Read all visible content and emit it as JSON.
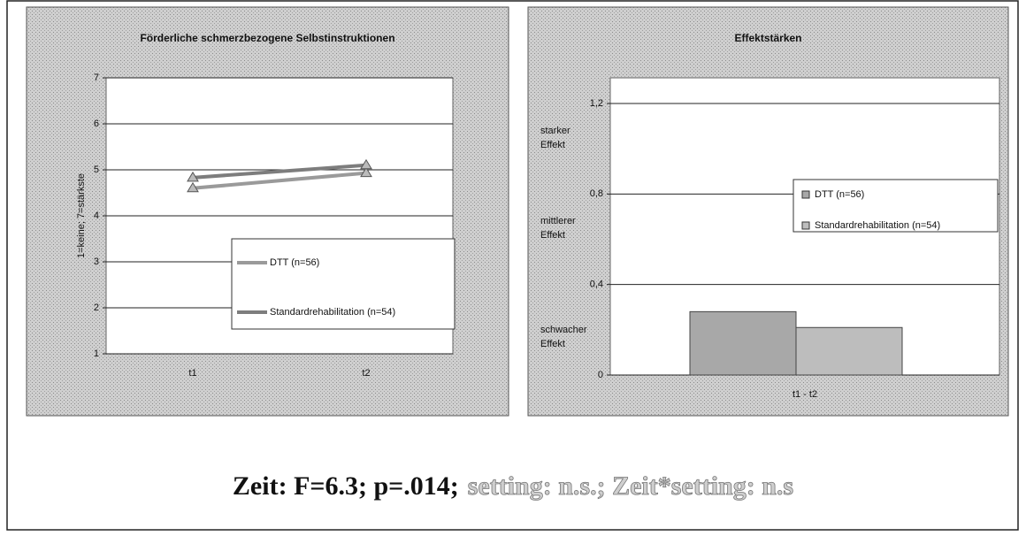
{
  "chart_data": [
    {
      "type": "line",
      "title": "Förderliche schmerzbezogene Selbstinstruktionen",
      "y_label": "1=keine; 7=stärkste",
      "categories": [
        "t1",
        "t2"
      ],
      "series": [
        {
          "name": "DTT (n=56)",
          "color": "#9a9a9a",
          "values": [
            4.6,
            4.93
          ]
        },
        {
          "name": "Standardrehabilitation (n=54)",
          "color": "#7d7d7d",
          "values": [
            4.83,
            5.1
          ]
        }
      ],
      "ylim": [
        1,
        7
      ],
      "yticks": [
        1,
        2,
        3,
        4,
        5,
        6,
        7
      ],
      "grid": true,
      "legend": "right"
    },
    {
      "type": "bar",
      "title": "Effektstärken",
      "categories": [
        "t1 - t2"
      ],
      "series": [
        {
          "name": "DTT (n=56)",
          "color": "#a8a8a8",
          "values": [
            0.28
          ]
        },
        {
          "name": "Standardrehabilitation (n=54)",
          "color": "#bdbdbd",
          "values": [
            0.21
          ]
        }
      ],
      "ylim": [
        0,
        1.2
      ],
      "yticks": [
        0,
        {
          "value": 0.4,
          "label": "0,4"
        },
        {
          "value": 0.8,
          "label": "0,8"
        },
        {
          "value": 1.2,
          "label": "1,2"
        }
      ],
      "annotations": [
        [
          "starker",
          "Effekt"
        ],
        [
          "mittlerer",
          "Effekt"
        ],
        [
          "schwacher",
          "Effekt"
        ]
      ],
      "grid": true,
      "legend": "right"
    }
  ],
  "footer": {
    "main": "Zeit: F=6.3; p=.014;",
    "muted": "setting: n.s.;  Zeit*setting: n.s"
  }
}
